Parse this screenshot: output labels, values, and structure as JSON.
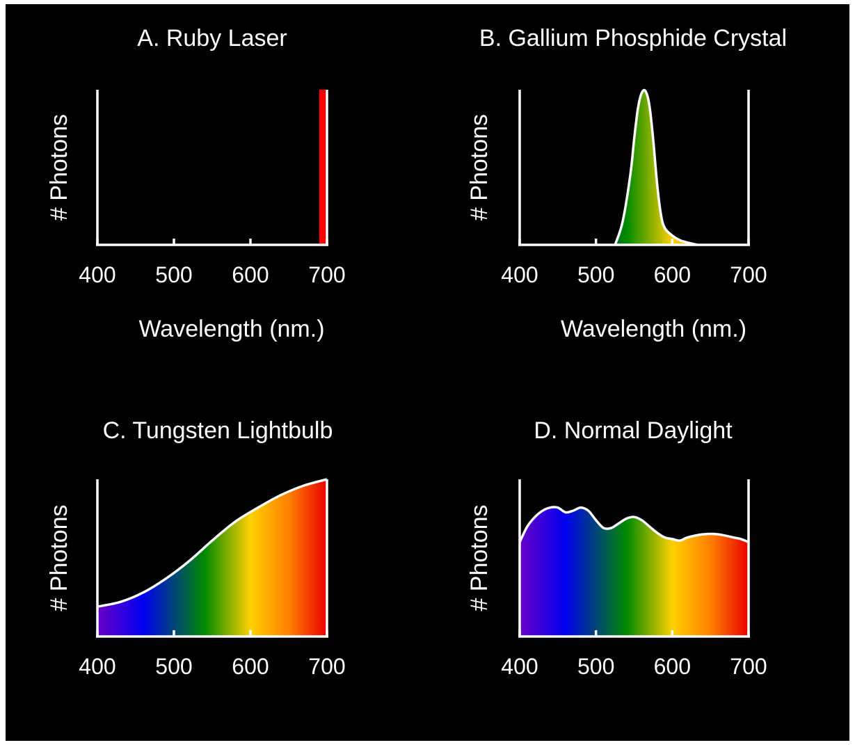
{
  "figure": {
    "background": "#000000",
    "axis_color": "#ffffff"
  },
  "spectrum_colors": {
    "stops": [
      {
        "wavelength": 400,
        "color": "#6a00c8"
      },
      {
        "wavelength": 460,
        "color": "#0000f0"
      },
      {
        "wavelength": 540,
        "color": "#008a00"
      },
      {
        "wavelength": 600,
        "color": "#ffd000"
      },
      {
        "wavelength": 650,
        "color": "#ff8000"
      },
      {
        "wavelength": 700,
        "color": "#e80000"
      }
    ]
  },
  "chart_data": [
    {
      "id": "A",
      "type": "line",
      "title": "A.  Ruby Laser",
      "xlabel": "Wavelength (nm.)",
      "ylabel": "# Photons",
      "xlim": [
        400,
        700
      ],
      "ylim": [
        0,
        1
      ],
      "xticks": [
        400,
        500,
        600,
        700
      ],
      "grid": false,
      "line_color": "#ff0000",
      "series": [
        {
          "x": [
            694,
            694
          ],
          "y": [
            0,
            1
          ]
        }
      ]
    },
    {
      "id": "B",
      "type": "area",
      "title": "B. Gallium Phosphide Crystal",
      "xlabel": "Wavelength (nm.)",
      "ylabel": "# Photons",
      "xlim": [
        400,
        700
      ],
      "ylim": [
        0,
        1
      ],
      "xticks": [
        400,
        500,
        600,
        700
      ],
      "grid": false,
      "series": [
        {
          "x": [
            525,
            535,
            545,
            550,
            555,
            560,
            565,
            570,
            575,
            580,
            585,
            590,
            600,
            610,
            620,
            633
          ],
          "y": [
            0,
            0.15,
            0.45,
            0.68,
            0.88,
            0.98,
            0.99,
            0.9,
            0.68,
            0.4,
            0.2,
            0.11,
            0.06,
            0.03,
            0.015,
            0
          ]
        }
      ]
    },
    {
      "id": "C",
      "type": "area",
      "title": "C.  Tungsten Lightbulb",
      "xlabel": "",
      "ylabel": "# Photons",
      "xlim": [
        400,
        700
      ],
      "ylim": [
        0,
        1
      ],
      "xticks": [
        400,
        500,
        600,
        700
      ],
      "grid": false,
      "series": [
        {
          "x": [
            400,
            430,
            460,
            490,
            520,
            550,
            580,
            610,
            640,
            670,
            700
          ],
          "y": [
            0.19,
            0.22,
            0.28,
            0.37,
            0.48,
            0.61,
            0.73,
            0.82,
            0.9,
            0.96,
            1.0
          ]
        }
      ]
    },
    {
      "id": "D",
      "type": "area",
      "title": "D.  Normal Daylight",
      "xlabel": "",
      "ylabel": "# Photons",
      "xlim": [
        400,
        700
      ],
      "ylim": [
        0,
        1
      ],
      "xticks": [
        400,
        500,
        600,
        700
      ],
      "grid": false,
      "series": [
        {
          "x": [
            400,
            410,
            420,
            430,
            440,
            450,
            460,
            470,
            480,
            490,
            500,
            510,
            520,
            530,
            540,
            550,
            560,
            570,
            580,
            590,
            600,
            610,
            620,
            640,
            660,
            680,
            690,
            700
          ],
          "y": [
            0.6,
            0.7,
            0.76,
            0.8,
            0.82,
            0.82,
            0.79,
            0.8,
            0.82,
            0.8,
            0.74,
            0.69,
            0.69,
            0.72,
            0.75,
            0.76,
            0.74,
            0.7,
            0.66,
            0.63,
            0.62,
            0.61,
            0.63,
            0.65,
            0.65,
            0.63,
            0.62,
            0.6
          ]
        }
      ]
    }
  ]
}
